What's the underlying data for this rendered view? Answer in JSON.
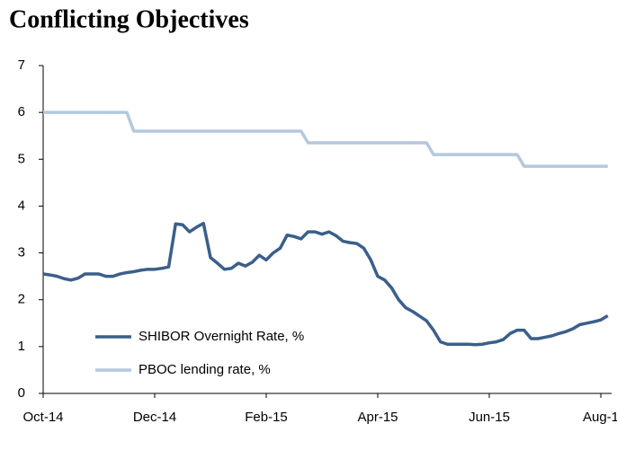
{
  "chart_data": {
    "type": "line",
    "title": "Conflicting Objectives",
    "categories": [
      "Oct-14",
      null,
      null,
      null,
      null,
      null,
      null,
      null,
      null,
      null,
      null,
      null,
      null,
      null,
      null,
      null,
      "Dec-14",
      null,
      null,
      null,
      null,
      null,
      null,
      null,
      null,
      null,
      null,
      null,
      null,
      null,
      null,
      null,
      "Feb-15",
      null,
      null,
      null,
      null,
      null,
      null,
      null,
      null,
      null,
      null,
      null,
      null,
      null,
      null,
      null,
      "Apr-15",
      null,
      null,
      null,
      null,
      null,
      null,
      null,
      null,
      null,
      null,
      null,
      null,
      null,
      null,
      null,
      "Jun-15",
      null,
      null,
      null,
      null,
      null,
      null,
      null,
      null,
      null,
      null,
      null,
      null,
      null,
      null,
      null,
      "Aug-1",
      null
    ],
    "series": [
      {
        "name": "SHIBOR Overnight Rate, %",
        "color": "#3a5f8a",
        "values": [
          2.55,
          2.53,
          2.5,
          2.45,
          2.42,
          2.46,
          2.55,
          2.55,
          2.55,
          2.5,
          2.5,
          2.55,
          2.58,
          2.6,
          2.63,
          2.65,
          2.65,
          2.67,
          2.7,
          3.62,
          3.6,
          3.45,
          3.55,
          3.63,
          2.9,
          2.78,
          2.65,
          2.67,
          2.78,
          2.72,
          2.8,
          2.95,
          2.85,
          3.0,
          3.1,
          3.38,
          3.35,
          3.3,
          3.45,
          3.45,
          3.4,
          3.45,
          3.37,
          3.25,
          3.22,
          3.2,
          3.1,
          2.85,
          2.5,
          2.42,
          2.25,
          2.0,
          1.83,
          1.75,
          1.65,
          1.55,
          1.35,
          1.1,
          1.05,
          1.05,
          1.05,
          1.05,
          1.04,
          1.05,
          1.08,
          1.1,
          1.15,
          1.28,
          1.35,
          1.35,
          1.17,
          1.17,
          1.2,
          1.23,
          1.28,
          1.32,
          1.38,
          1.47,
          1.5,
          1.53,
          1.57,
          1.66
        ]
      },
      {
        "name": "PBOC lending rate, %",
        "color": "#b3c8de",
        "values": [
          6,
          6,
          6,
          6,
          6,
          6,
          6,
          6,
          6,
          6,
          6,
          6,
          6,
          5.6,
          5.6,
          5.6,
          5.6,
          5.6,
          5.6,
          5.6,
          5.6,
          5.6,
          5.6,
          5.6,
          5.6,
          5.6,
          5.6,
          5.6,
          5.6,
          5.6,
          5.6,
          5.6,
          5.6,
          5.6,
          5.6,
          5.6,
          5.6,
          5.6,
          5.35,
          5.35,
          5.35,
          5.35,
          5.35,
          5.35,
          5.35,
          5.35,
          5.35,
          5.35,
          5.35,
          5.35,
          5.35,
          5.35,
          5.35,
          5.35,
          5.35,
          5.35,
          5.1,
          5.1,
          5.1,
          5.1,
          5.1,
          5.1,
          5.1,
          5.1,
          5.1,
          5.1,
          5.1,
          5.1,
          5.1,
          4.85,
          4.85,
          4.85,
          4.85,
          4.85,
          4.85,
          4.85,
          4.85,
          4.85,
          4.85,
          4.85,
          4.85,
          4.85
        ]
      }
    ],
    "ylim": [
      0,
      7
    ],
    "yticks": [
      0,
      1,
      2,
      3,
      4,
      5,
      6,
      7
    ],
    "grid": false
  }
}
